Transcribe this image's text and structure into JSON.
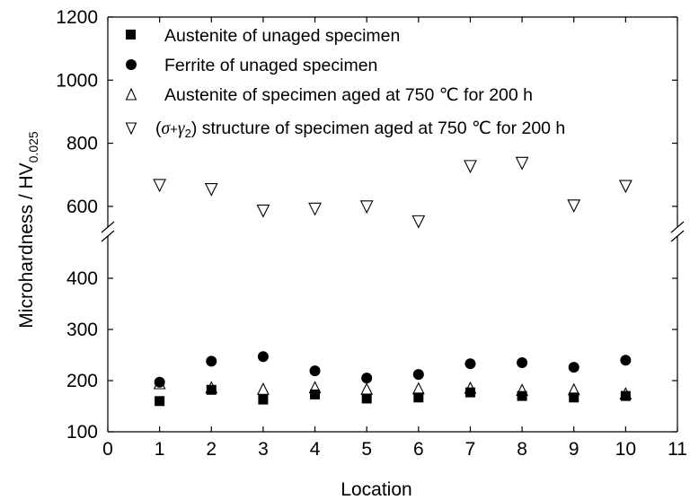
{
  "chart_data": {
    "type": "scatter",
    "title": "",
    "xlabel": "Location",
    "ylabel": "Microhardness / HV",
    "ylabel_subscript": "0.025",
    "xlim": [
      0,
      11
    ],
    "x_ticks": [
      0,
      1,
      2,
      3,
      4,
      5,
      6,
      7,
      8,
      9,
      10,
      11
    ],
    "ylim_lower": [
      100,
      500
    ],
    "ylim_upper": [
      500,
      1200
    ],
    "y_ticks": [
      100,
      200,
      300,
      400,
      600,
      800,
      1000,
      1200
    ],
    "axis_break": "between 400 and 600",
    "grid": false,
    "legend_position": "top-center",
    "series": [
      {
        "name": "Austenite of unaged specimen",
        "marker": "filled-square",
        "x": [
          1,
          2,
          3,
          4,
          5,
          6,
          7,
          8,
          9,
          10
        ],
        "y": [
          160,
          182,
          163,
          173,
          165,
          167,
          177,
          170,
          167,
          170
        ]
      },
      {
        "name": "Ferrite of unaged specimen",
        "marker": "filled-circle",
        "x": [
          1,
          2,
          3,
          4,
          5,
          6,
          7,
          8,
          9,
          10
        ],
        "y": [
          197,
          238,
          247,
          219,
          205,
          212,
          233,
          235,
          226,
          240
        ]
      },
      {
        "name": "Austenite of specimen aged at 750 ℃ for 200 h",
        "marker": "open-triangle-up",
        "x": [
          1,
          2,
          3,
          4,
          5,
          6,
          7,
          8,
          9,
          10
        ],
        "y": [
          193,
          185,
          182,
          185,
          182,
          183,
          184,
          180,
          181,
          173
        ]
      },
      {
        "name_prefix": "(",
        "name_sigma": "σ",
        "name_plus": "+",
        "name_gamma": "γ",
        "name_sub": "2",
        "name_rest": ") structure of specimen aged at 750 ℃ for 200 h",
        "marker": "open-triangle-down",
        "x": [
          1,
          2,
          3,
          4,
          5,
          6,
          7,
          8,
          9,
          10
        ],
        "y": [
          668,
          655,
          587,
          593,
          600,
          553,
          728,
          738,
          603,
          665
        ]
      }
    ]
  }
}
